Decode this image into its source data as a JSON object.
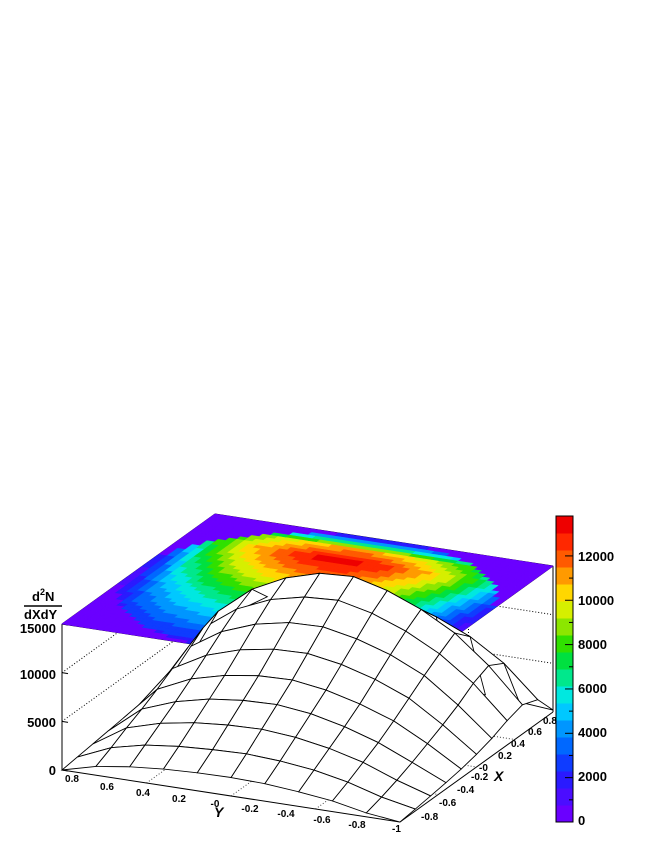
{
  "chart_data": {
    "type": "surface3d",
    "zlabel_num": "d",
    "zlabel_sup": "2",
    "zlabel_num2": "N",
    "zlabel_den": "dXdY",
    "xlabel": "X",
    "ylabel": "Y",
    "x_ticks": [
      "-1",
      "-0.8",
      "-0.6",
      "-0.4",
      "-0.2",
      "-0",
      "0.2",
      "0.4",
      "0.6",
      "0.8"
    ],
    "y_ticks": [
      "0.8",
      "0.6",
      "0.4",
      "0.2",
      "-0",
      "-0.2",
      "-0.4",
      "-0.6",
      "-0.8"
    ],
    "z_ticks": [
      "0",
      "5000",
      "10000",
      "15000"
    ],
    "colorbar_ticks": [
      "0",
      "2000",
      "4000",
      "6000",
      "8000",
      "10000",
      "12000"
    ],
    "xlim": [
      -1,
      1
    ],
    "ylim": [
      -1,
      1
    ],
    "zlim": [
      0,
      15000
    ],
    "colorbar_range": [
      0,
      13800
    ],
    "palette": [
      "#6a00ff",
      "#4b0dff",
      "#2a1aff",
      "#0f3cff",
      "#0068ff",
      "#0096ff",
      "#00c8ff",
      "#00e8e0",
      "#00e88c",
      "#00e040",
      "#30e000",
      "#8ce600",
      "#d6ef00",
      "#ffd700",
      "#ff9a00",
      "#ff5a00",
      "#ff2800",
      "#ee0000"
    ],
    "grid": true,
    "surface_peak": {
      "x": -0.1,
      "y": -0.55,
      "z": 13500
    },
    "surface_rows": [
      [
        0,
        200,
        420,
        650,
        920,
        1300,
        1800,
        2500,
        3000,
        2400,
        200
      ],
      [
        400,
        900,
        1500,
        2200,
        3000,
        3800,
        4700,
        5800,
        6500,
        5600,
        500
      ],
      [
        1100,
        1900,
        2800,
        3700,
        4800,
        6000,
        7200,
        8300,
        9300,
        7800,
        700
      ],
      [
        1500,
        2600,
        3700,
        4800,
        6000,
        7400,
        8800,
        10100,
        11200,
        9300,
        800
      ],
      [
        1800,
        3000,
        4300,
        5600,
        6900,
        8400,
        9900,
        11400,
        12600,
        10400,
        900
      ],
      [
        1900,
        3200,
        4600,
        6000,
        7400,
        9000,
        10600,
        12200,
        13500,
        11000,
        900
      ],
      [
        1850,
        3100,
        4500,
        5900,
        7300,
        8900,
        10500,
        12000,
        13300,
        10800,
        900
      ],
      [
        1700,
        2900,
        4200,
        5500,
        6800,
        8300,
        9800,
        11200,
        12300,
        10000,
        800
      ],
      [
        1400,
        2500,
        3600,
        4700,
        5900,
        7200,
        8500,
        9700,
        10600,
        8700,
        700
      ],
      [
        900,
        1700,
        2600,
        3400,
        4300,
        5300,
        6300,
        7200,
        7800,
        6500,
        500
      ],
      [
        0,
        200,
        400,
        600,
        800,
        1000,
        1200,
        1400,
        1500,
        1200,
        100
      ]
    ]
  }
}
